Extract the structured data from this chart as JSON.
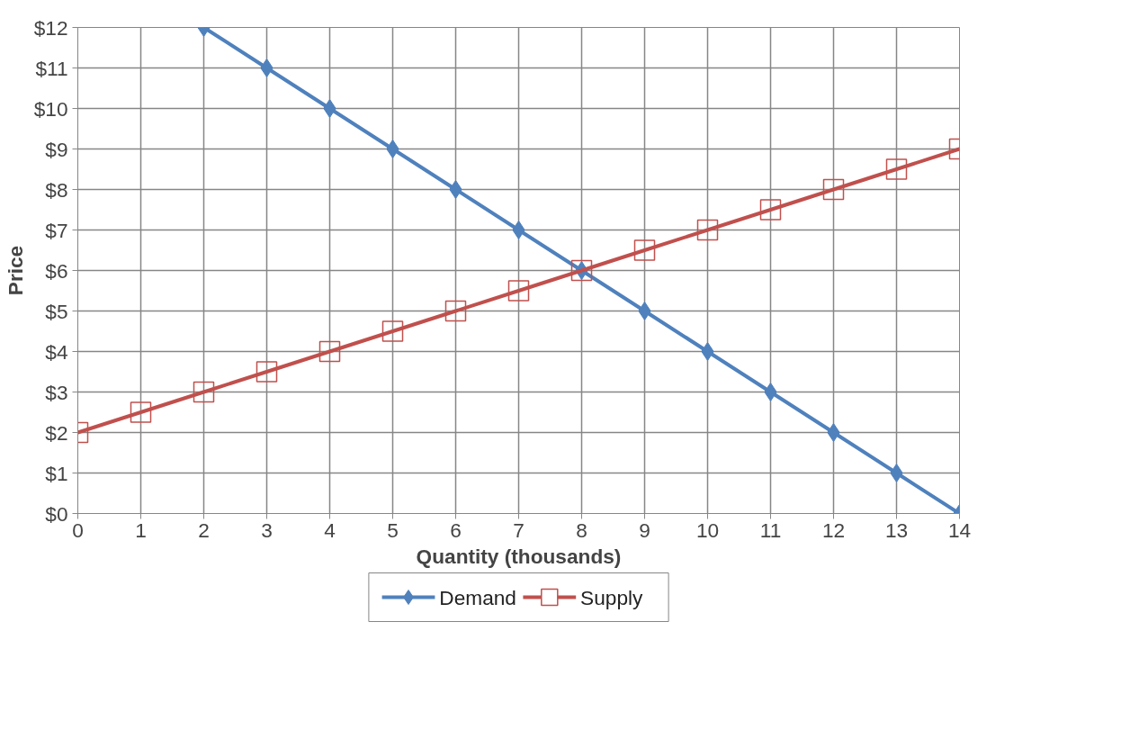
{
  "chart_data": {
    "type": "line",
    "xlabel": "Quantity (thousands)",
    "ylabel": "Price",
    "xlim": [
      0,
      14
    ],
    "ylim": [
      0,
      12
    ],
    "xticks": [
      0,
      1,
      2,
      3,
      4,
      5,
      6,
      7,
      8,
      9,
      10,
      11,
      12,
      13,
      14
    ],
    "yticks": [
      {
        "value": 0,
        "label": "$0"
      },
      {
        "value": 1,
        "label": "$1"
      },
      {
        "value": 2,
        "label": "$2"
      },
      {
        "value": 3,
        "label": "$3"
      },
      {
        "value": 4,
        "label": "$4"
      },
      {
        "value": 5,
        "label": "$5"
      },
      {
        "value": 6,
        "label": "$6"
      },
      {
        "value": 7,
        "label": "$7"
      },
      {
        "value": 8,
        "label": "$8"
      },
      {
        "value": 9,
        "label": "$9"
      },
      {
        "value": 10,
        "label": "$10"
      },
      {
        "value": 11,
        "label": "$11"
      },
      {
        "value": 12,
        "label": "$12"
      }
    ],
    "grid": true,
    "legend": "bottom",
    "line_style": "solid",
    "series": [
      {
        "name": "Demand",
        "color": "#4f81bd",
        "marker": "diamond",
        "x": [
          2,
          3,
          4,
          5,
          6,
          7,
          8,
          9,
          10,
          11,
          12,
          13,
          14
        ],
        "values": [
          12,
          11,
          10,
          9,
          8,
          7,
          6,
          5,
          4,
          3,
          2,
          1,
          0
        ]
      },
      {
        "name": "Supply",
        "color": "#c0504d",
        "marker": "square",
        "x": [
          0,
          1,
          2,
          3,
          4,
          5,
          6,
          7,
          8,
          9,
          10,
          11,
          12,
          13,
          14
        ],
        "values": [
          2,
          2.5,
          3,
          3.5,
          4,
          4.5,
          5,
          5.5,
          6,
          6.5,
          7,
          7.5,
          8,
          8.5,
          9
        ]
      }
    ]
  }
}
